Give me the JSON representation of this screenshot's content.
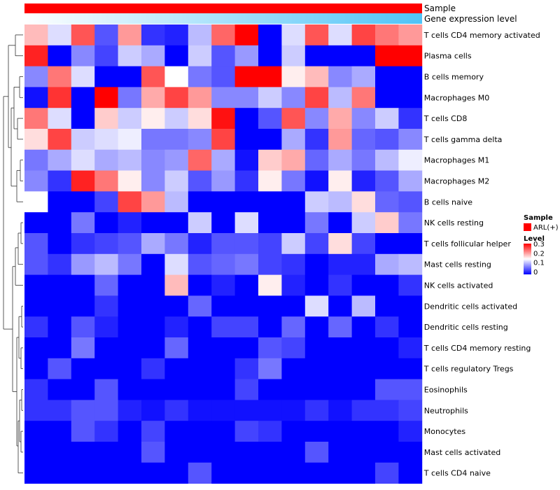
{
  "chart_data": {
    "type": "heatmap",
    "annotation_tracks": [
      {
        "name": "Sample",
        "value": "ARL(+)",
        "color": "#ff0000"
      },
      {
        "name": "Gene expression level",
        "gradient": [
          "#ffffff",
          "#4fc3f7"
        ]
      }
    ],
    "rows": [
      "T cells CD4 memory activated",
      "Plasma cells",
      "B cells memory",
      "Macrophages M0",
      "T cells CD8",
      "T cells gamma delta",
      "Macrophages M1",
      "Macrophages M2",
      "B cells naive",
      "NK cells resting",
      "T cells follicular helper",
      "Mast cells resting",
      "NK cells activated",
      "Dendritic cells activated",
      "Dendritic cells resting",
      "T cells CD4 memory resting",
      "T cells regulatory  Tregs",
      "Eosinophils",
      "Neutrophils",
      "Monocytes",
      "Mast cells activated",
      "T cells CD4 naive"
    ],
    "n_columns": 17,
    "values": [
      [
        0.19,
        0.13,
        0.25,
        0.05,
        0.21,
        0.03,
        0.02,
        0.11,
        0.24,
        0.3,
        0.0,
        0.13,
        0.25,
        0.13,
        0.26,
        0.23,
        0.21
      ],
      [
        0.28,
        0.0,
        0.08,
        0.04,
        0.12,
        0.1,
        0.0,
        0.12,
        0.05,
        0.09,
        0.0,
        0.12,
        0.0,
        0.0,
        0.0,
        0.3,
        0.3
      ],
      [
        0.08,
        0.23,
        0.13,
        0.0,
        0.0,
        0.25,
        0.15,
        0.07,
        0.05,
        0.3,
        0.3,
        0.16,
        0.19,
        0.08,
        0.1,
        0.0,
        0.0
      ],
      [
        0.01,
        0.27,
        0.0,
        0.3,
        0.07,
        0.2,
        0.26,
        0.21,
        0.08,
        0.08,
        0.12,
        0.08,
        0.26,
        0.11,
        0.23,
        0.0,
        0.0
      ],
      [
        0.23,
        0.13,
        0.0,
        0.18,
        0.12,
        0.16,
        0.12,
        0.17,
        0.29,
        0.0,
        0.05,
        0.25,
        0.08,
        0.2,
        0.08,
        0.12,
        0.03
      ],
      [
        0.17,
        0.26,
        0.12,
        0.13,
        0.14,
        0.07,
        0.07,
        0.08,
        0.26,
        0.0,
        0.0,
        0.1,
        0.03,
        0.21,
        0.06,
        0.05,
        0.08
      ],
      [
        0.07,
        0.1,
        0.13,
        0.1,
        0.11,
        0.08,
        0.09,
        0.24,
        0.1,
        0.01,
        0.18,
        0.2,
        0.06,
        0.1,
        0.07,
        0.11,
        0.14
      ],
      [
        0.08,
        0.03,
        0.28,
        0.23,
        0.16,
        0.08,
        0.12,
        0.05,
        0.09,
        0.03,
        0.16,
        0.07,
        0.01,
        0.16,
        0.02,
        0.05,
        0.1
      ],
      [
        0.15,
        0.0,
        0.0,
        0.04,
        0.26,
        0.21,
        0.11,
        0.0,
        0.0,
        0.0,
        0.0,
        0.0,
        0.12,
        0.11,
        0.17,
        0.06,
        0.05
      ],
      [
        0.0,
        0.0,
        0.07,
        0.0,
        0.02,
        0.0,
        0.0,
        0.12,
        0.0,
        0.13,
        0.0,
        0.0,
        0.07,
        0.0,
        0.12,
        0.18,
        0.07
      ],
      [
        0.05,
        0.0,
        0.03,
        0.04,
        0.05,
        0.1,
        0.07,
        0.02,
        0.05,
        0.05,
        0.04,
        0.12,
        0.04,
        0.17,
        0.04,
        0.0,
        0.0
      ],
      [
        0.05,
        0.03,
        0.09,
        0.11,
        0.07,
        0.0,
        0.13,
        0.05,
        0.06,
        0.07,
        0.04,
        0.03,
        0.0,
        0.02,
        0.02,
        0.1,
        0.11
      ],
      [
        0.0,
        0.0,
        0.0,
        0.06,
        0.0,
        0.0,
        0.19,
        0.0,
        0.02,
        0.0,
        0.16,
        0.02,
        0.0,
        0.03,
        0.0,
        0.0,
        0.03
      ],
      [
        0.0,
        0.0,
        0.0,
        0.03,
        0.0,
        0.0,
        0.0,
        0.06,
        0.0,
        0.0,
        0.0,
        0.0,
        0.13,
        0.0,
        0.11,
        0.0,
        0.0
      ],
      [
        0.03,
        0.0,
        0.05,
        0.02,
        0.0,
        0.0,
        0.02,
        0.0,
        0.04,
        0.04,
        0.0,
        0.06,
        0.0,
        0.06,
        0.0,
        0.03,
        0.0
      ],
      [
        0.0,
        0.0,
        0.07,
        0.0,
        0.0,
        0.0,
        0.06,
        0.0,
        0.0,
        0.0,
        0.05,
        0.04,
        0.0,
        0.0,
        0.0,
        0.0,
        0.02
      ],
      [
        0.0,
        0.05,
        0.0,
        0.0,
        0.0,
        0.03,
        0.0,
        0.0,
        0.0,
        0.03,
        0.07,
        0.0,
        0.0,
        0.0,
        0.0,
        0.0,
        0.0
      ],
      [
        0.03,
        0.0,
        0.0,
        0.05,
        0.0,
        0.0,
        0.0,
        0.0,
        0.0,
        0.04,
        0.0,
        0.0,
        0.0,
        0.0,
        0.0,
        0.05,
        0.05
      ],
      [
        0.03,
        0.03,
        0.05,
        0.05,
        0.02,
        0.01,
        0.03,
        0.01,
        0.01,
        0.01,
        0.01,
        0.01,
        0.03,
        0.01,
        0.03,
        0.03,
        0.04
      ],
      [
        0.0,
        0.0,
        0.05,
        0.03,
        0.0,
        0.04,
        0.0,
        0.0,
        0.0,
        0.04,
        0.03,
        0.0,
        0.0,
        0.0,
        0.0,
        0.0,
        0.02
      ],
      [
        0.0,
        0.0,
        0.0,
        0.0,
        0.0,
        0.05,
        0.0,
        0.0,
        0.0,
        0.0,
        0.0,
        0.0,
        0.05,
        0.0,
        0.0,
        0.0,
        0.0
      ],
      [
        0.0,
        0.0,
        0.0,
        0.0,
        0.0,
        0.0,
        0.0,
        0.05,
        0.0,
        0.0,
        0.0,
        0.0,
        0.0,
        0.0,
        0.0,
        0.04,
        0.0
      ]
    ],
    "color_scale": {
      "min": 0,
      "max": 0.3,
      "colors": [
        "#0000ff",
        "#ffffff",
        "#ff0000"
      ]
    },
    "legend": {
      "sample_title": "Sample",
      "sample_label": "ARL(+)",
      "level_title": "Level",
      "level_ticks": [
        "0.3",
        "0.2",
        "0.1",
        "0"
      ],
      "position": "right"
    },
    "row_dendrogram": true
  }
}
